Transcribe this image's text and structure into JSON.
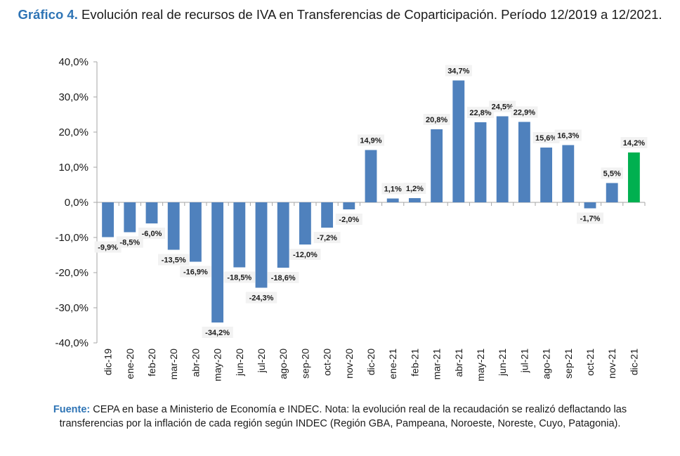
{
  "header": {
    "title_lead": "Gráfico 4.",
    "title_text": "Evolución real de recursos de IVA en Transferencias de Coparticipación. Período 12/2019 a 12/2021."
  },
  "footer": {
    "source_lead": "Fuente:",
    "source_text": "CEPA en base a Ministerio de Economía e INDEC. Nota: la evolución real de la recaudación se realizó deflactando las transferencias por la inflación de cada región según INDEC (Región GBA, Pampeana, Noroeste, Noreste, Cuyo, Patagonia)."
  },
  "chart_data": {
    "type": "bar",
    "categories": [
      "dic-19",
      "ene-20",
      "feb-20",
      "mar-20",
      "abr-20",
      "may-20",
      "jun-20",
      "jul-20",
      "ago-20",
      "sep-20",
      "oct-20",
      "nov-20",
      "dic-20",
      "ene-21",
      "feb-21",
      "mar-21",
      "abr-21",
      "may-21",
      "jun-21",
      "jul-21",
      "ago-21",
      "sep-21",
      "oct-21",
      "nov-21",
      "dic-21"
    ],
    "values": [
      -9.9,
      -8.5,
      -6.0,
      -13.5,
      -16.9,
      -34.2,
      -18.5,
      -24.3,
      -18.6,
      -12.0,
      -7.2,
      -2.0,
      14.9,
      1.1,
      1.2,
      20.8,
      34.7,
      22.8,
      24.5,
      22.9,
      15.6,
      16.3,
      -1.7,
      5.5,
      14.2
    ],
    "data_labels": [
      "-9,9%",
      "-8,5%",
      "-6,0%",
      "-13,5%",
      "-16,9%",
      "-34,2%",
      "-18,5%",
      "-24,3%",
      "-18,6%",
      "-12,0%",
      "-7,2%",
      "-2,0%",
      "14,9%",
      "1,1%",
      "1,2%",
      "20,8%",
      "34,7%",
      "22,8%",
      "24,5%",
      "22,9%",
      "15,6%",
      "16,3%",
      "-1,7%",
      "5,5%",
      "14,2%"
    ],
    "y_ticks": [
      40,
      30,
      20,
      10,
      0,
      -10,
      -20,
      -30,
      -40
    ],
    "y_tick_labels": [
      "40,0%",
      "30,0%",
      "20,0%",
      "10,0%",
      "0,0%",
      "-10,0%",
      "-20,0%",
      "-30,0%",
      "-40,0%"
    ],
    "ylim": [
      -40,
      40
    ],
    "grid": false,
    "colors": {
      "default": "#4f81bd",
      "highlight": "#00b050",
      "axis": "#a6a6a6"
    },
    "highlight_index": 24
  }
}
